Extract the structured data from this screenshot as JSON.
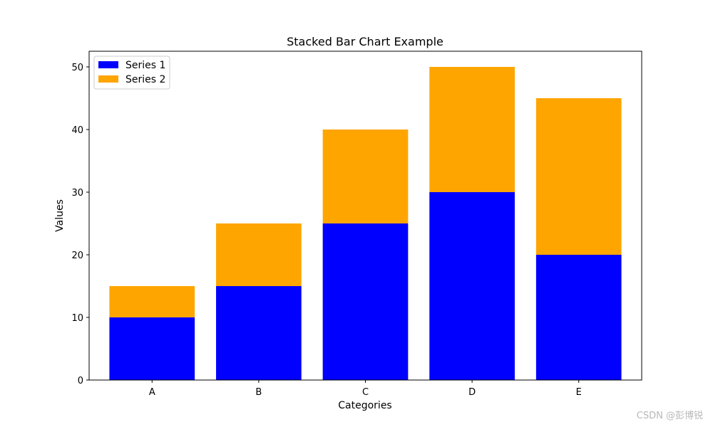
{
  "chart_data": {
    "type": "bar",
    "stacked": true,
    "title": "Stacked Bar Chart Example",
    "xlabel": "Categories",
    "ylabel": "Values",
    "categories": [
      "A",
      "B",
      "C",
      "D",
      "E"
    ],
    "series": [
      {
        "name": "Series 1",
        "values": [
          10,
          15,
          25,
          30,
          20
        ],
        "color": "#0000ff"
      },
      {
        "name": "Series 2",
        "values": [
          5,
          10,
          15,
          20,
          25
        ],
        "color": "#ffa500"
      }
    ],
    "ylim": [
      0,
      52.5
    ],
    "yticks": [
      0,
      10,
      20,
      30,
      40,
      50
    ],
    "grid": false,
    "legend_position": "top-left"
  },
  "watermark": "CSDN @彭博锐"
}
